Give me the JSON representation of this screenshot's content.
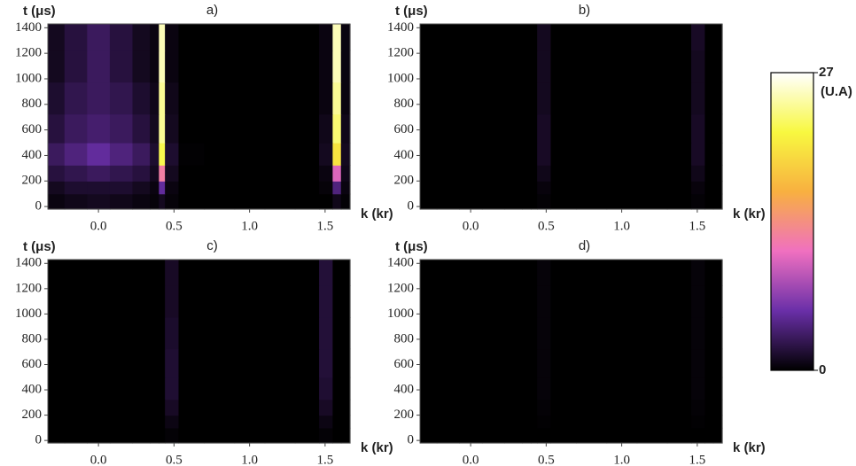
{
  "chart_data": [
    {
      "type": "heatmap",
      "title": "a)",
      "x_label": "k (kr)",
      "y_label": "t (μs)",
      "x": [
        -0.3,
        -0.15,
        0,
        0.15,
        0.3,
        0.38,
        0.42,
        0.46,
        0.6,
        0.8,
        1.0,
        1.2,
        1.4,
        1.52,
        1.58,
        1.63
      ],
      "y": [
        50,
        150,
        250,
        400,
        600,
        850,
        1100,
        1350
      ],
      "values": [
        [
          0.5,
          0.8,
          1,
          0.8,
          0.5,
          0.3,
          1,
          0.3,
          0,
          0,
          0,
          0,
          0,
          0,
          0.8,
          0.2
        ],
        [
          1,
          1.5,
          1.5,
          1.5,
          1,
          0.5,
          5,
          0.5,
          0,
          0,
          0,
          0,
          0,
          0.3,
          4,
          0.5
        ],
        [
          2,
          2.5,
          3,
          2.5,
          2,
          1,
          12,
          1,
          0,
          0,
          0,
          0,
          0,
          0.5,
          10,
          0.8
        ],
        [
          3,
          4,
          5,
          4,
          3,
          1.5,
          22,
          1.5,
          0.1,
          0,
          0,
          0,
          0,
          1,
          20,
          1
        ],
        [
          2,
          3,
          3.5,
          3,
          2,
          1,
          24,
          1,
          0,
          0,
          0,
          0,
          0,
          0.8,
          23,
          0.8
        ],
        [
          1.5,
          2.5,
          3,
          2.5,
          1.5,
          0.8,
          24,
          0.8,
          0,
          0,
          0,
          0,
          0,
          0.5,
          24,
          0.5
        ],
        [
          1,
          2,
          3,
          2,
          1,
          0.5,
          25,
          0.5,
          0,
          0,
          0,
          0,
          0,
          0.5,
          25,
          0.5
        ],
        [
          1,
          2,
          3,
          2,
          1,
          0.5,
          25,
          0.5,
          0,
          0,
          0,
          0,
          0,
          0.5,
          25,
          0.5
        ]
      ],
      "xlim": [
        -0.335,
        1.665
      ],
      "ylim": [
        -20,
        1430
      ],
      "xticks": [
        {
          "value": 0,
          "label": "0.0"
        },
        0.5,
        {
          "value": 1,
          "label": "1.0"
        },
        1.5
      ],
      "yticks": [
        0,
        200,
        400,
        600,
        800,
        1000,
        1200,
        1400
      ]
    },
    {
      "type": "heatmap",
      "title": "b)",
      "x_label": "k (kr)",
      "y_label": "t (μs)",
      "x": [
        -0.3,
        -0.15,
        0,
        0.15,
        0.3,
        0.38,
        0.42,
        0.46,
        0.6,
        0.8,
        1.0,
        1.2,
        1.4,
        1.52,
        1.58,
        1.63
      ],
      "y": [
        50,
        150,
        250,
        400,
        600,
        850,
        1100,
        1350
      ],
      "values": [
        [
          0,
          0,
          0,
          0,
          0,
          0,
          0,
          0.2,
          0,
          0,
          0,
          0,
          0,
          0.2,
          0,
          0
        ],
        [
          0,
          0,
          0,
          0,
          0,
          0,
          0,
          0.4,
          0,
          0,
          0,
          0,
          0,
          0.4,
          0,
          0
        ],
        [
          0,
          0,
          0,
          0,
          0,
          0,
          0,
          0.8,
          0,
          0,
          0,
          0,
          0,
          0.8,
          0,
          0
        ],
        [
          0,
          0,
          0,
          0,
          0,
          0,
          0,
          1.2,
          0,
          0,
          0,
          0,
          0,
          1.2,
          0,
          0
        ],
        [
          0,
          0,
          0,
          0,
          0,
          0,
          0,
          1.2,
          0,
          0,
          0,
          0,
          0,
          1.2,
          0,
          0
        ],
        [
          0,
          0,
          0,
          0,
          0,
          0,
          0,
          1,
          0,
          0,
          0,
          0,
          0,
          1,
          0,
          0
        ],
        [
          0,
          0,
          0,
          0,
          0,
          0,
          0,
          1,
          0,
          0,
          0,
          0,
          0,
          1,
          0,
          0
        ],
        [
          0,
          0,
          0,
          0,
          0,
          0,
          0,
          1,
          0,
          0,
          0,
          0,
          0,
          1.2,
          0,
          0
        ]
      ],
      "xlim": [
        -0.335,
        1.665
      ],
      "ylim": [
        -20,
        1430
      ],
      "xticks": [
        {
          "value": 0,
          "label": "0.0"
        },
        0.5,
        {
          "value": 1,
          "label": "1.0"
        },
        1.5
      ],
      "yticks": [
        0,
        200,
        400,
        600,
        800,
        1000,
        1200,
        1400
      ]
    },
    {
      "type": "heatmap",
      "title": "c)",
      "x_label": "k (kr)",
      "y_label": "t (μs)",
      "x": [
        -0.3,
        -0.15,
        0,
        0.15,
        0.3,
        0.38,
        0.42,
        0.46,
        0.6,
        0.8,
        1.0,
        1.2,
        1.4,
        1.52,
        1.58,
        1.63
      ],
      "y": [
        50,
        150,
        250,
        400,
        600,
        850,
        1100,
        1350
      ],
      "values": [
        [
          0,
          0,
          0,
          0,
          0,
          0,
          0,
          0.2,
          0,
          0,
          0,
          0,
          0,
          0.2,
          0,
          0
        ],
        [
          0,
          0,
          0,
          0,
          0,
          0,
          0,
          0.6,
          0,
          0,
          0,
          0,
          0,
          0.6,
          0,
          0
        ],
        [
          0,
          0,
          0,
          0,
          0,
          0,
          0,
          1.2,
          0,
          0,
          0,
          0,
          0,
          1.2,
          0,
          0
        ],
        [
          0,
          0,
          0,
          0,
          0,
          0,
          0,
          1.6,
          0,
          0,
          0,
          0,
          0,
          1.6,
          0,
          0
        ],
        [
          0,
          0,
          0,
          0,
          0,
          0,
          0,
          1.6,
          0,
          0,
          0,
          0,
          0,
          1.8,
          0,
          0
        ],
        [
          0,
          0,
          0,
          0,
          0,
          0,
          0,
          1.4,
          0,
          0,
          0,
          0,
          0,
          1.8,
          0,
          0
        ],
        [
          0,
          0,
          0,
          0,
          0,
          0,
          0,
          1.2,
          0,
          0,
          0,
          0,
          0,
          1.8,
          0,
          0
        ],
        [
          0,
          0,
          0,
          0,
          0,
          0,
          0,
          1.2,
          0,
          0,
          0,
          0,
          0,
          1.8,
          0,
          0
        ]
      ],
      "xlim": [
        -0.335,
        1.665
      ],
      "ylim": [
        -20,
        1430
      ],
      "xticks": [
        {
          "value": 0,
          "label": "0.0"
        },
        0.5,
        {
          "value": 1,
          "label": "1.0"
        },
        1.5
      ],
      "yticks": [
        0,
        200,
        400,
        600,
        800,
        1000,
        1200,
        1400
      ]
    },
    {
      "type": "heatmap",
      "title": "d)",
      "x_label": "k (kr)",
      "y_label": "t (μs)",
      "x": [
        -0.3,
        -0.15,
        0,
        0.15,
        0.3,
        0.38,
        0.42,
        0.46,
        0.6,
        0.8,
        1.0,
        1.2,
        1.4,
        1.52,
        1.58,
        1.63
      ],
      "y": [
        50,
        150,
        250,
        400,
        600,
        850,
        1100,
        1350
      ],
      "values": [
        [
          0,
          0,
          0,
          0,
          0,
          0,
          0,
          0,
          0,
          0,
          0,
          0,
          0,
          0,
          0,
          0
        ],
        [
          0,
          0,
          0,
          0,
          0,
          0,
          0,
          0.1,
          0,
          0,
          0,
          0,
          0,
          0.1,
          0,
          0
        ],
        [
          0,
          0,
          0,
          0,
          0,
          0,
          0,
          0.2,
          0,
          0,
          0,
          0,
          0,
          0.2,
          0,
          0
        ],
        [
          0,
          0,
          0,
          0,
          0,
          0,
          0,
          0.3,
          0,
          0,
          0,
          0,
          0,
          0.3,
          0,
          0
        ],
        [
          0,
          0,
          0,
          0,
          0,
          0,
          0,
          0.3,
          0,
          0,
          0,
          0,
          0,
          0.3,
          0,
          0
        ],
        [
          0,
          0,
          0,
          0,
          0,
          0,
          0,
          0.3,
          0,
          0,
          0,
          0,
          0,
          0.3,
          0,
          0
        ],
        [
          0,
          0,
          0,
          0,
          0,
          0,
          0,
          0.3,
          0,
          0,
          0,
          0,
          0,
          0.3,
          0,
          0
        ],
        [
          0,
          0,
          0,
          0,
          0,
          0,
          0,
          0.3,
          0,
          0,
          0,
          0,
          0,
          0.3,
          0,
          0
        ]
      ],
      "xlim": [
        -0.335,
        1.665
      ],
      "ylim": [
        -20,
        1430
      ],
      "xticks": [
        {
          "value": 0,
          "label": "0.0"
        },
        0.5,
        {
          "value": 1,
          "label": "1.0"
        },
        1.5
      ],
      "yticks": [
        0,
        200,
        400,
        600,
        800,
        1000,
        1200,
        1400
      ]
    }
  ],
  "colorbar": {
    "ticks": [
      0,
      27
    ],
    "unit": "(U.A)",
    "colors": [
      "#000000",
      "#6a2fa8",
      "#f070c0",
      "#f8b040",
      "#f8f840",
      "#ffffff"
    ]
  }
}
